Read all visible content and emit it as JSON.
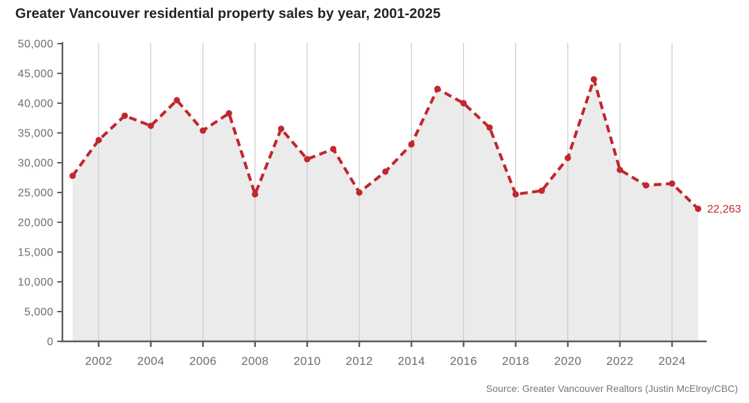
{
  "title": "Greater Vancouver residential property sales by year, 2001-2025",
  "source": "Source: Greater Vancouver Realtors (Justin McElroy/CBC)",
  "annotation": {
    "label": "22,263"
  },
  "colors": {
    "background": "#ffffff",
    "line": "#c1272d",
    "marker": "#c1272d",
    "area": "#ebebeb",
    "grid": "#c9c9c9",
    "axis": "#5b5b5b",
    "tick_text": "#6d6d6d",
    "title_text": "#242424",
    "source_text": "#767676"
  },
  "chart_data": {
    "type": "line",
    "title": "Greater Vancouver residential property sales by year, 2001-2025",
    "xlabel": "",
    "ylabel": "",
    "x": [
      2001,
      2002,
      2003,
      2004,
      2005,
      2006,
      2007,
      2008,
      2009,
      2010,
      2011,
      2012,
      2013,
      2014,
      2015,
      2016,
      2017,
      2018,
      2019,
      2020,
      2021,
      2022,
      2023,
      2024,
      2025
    ],
    "values": [
      27800,
      33800,
      37900,
      36200,
      40500,
      35400,
      38300,
      24700,
      35700,
      30600,
      32300,
      25000,
      28500,
      33100,
      42400,
      40000,
      35900,
      24700,
      25300,
      30800,
      44000,
      28800,
      26200,
      26500,
      22263
    ],
    "xlim": [
      2001,
      2025
    ],
    "ylim": [
      0,
      50000
    ],
    "ytick_step": 5000,
    "ytick_labels": [
      "0",
      "5,000",
      "10,000",
      "15,000",
      "20,000",
      "25,000",
      "30,000",
      "35,000",
      "40,000",
      "45,000",
      "50,000"
    ],
    "xticks": [
      2002,
      2004,
      2006,
      2008,
      2010,
      2012,
      2014,
      2016,
      2018,
      2020,
      2022,
      2024
    ],
    "xtick_labels": [
      "2002",
      "2004",
      "2006",
      "2008",
      "2010",
      "2012",
      "2014",
      "2016",
      "2018",
      "2020",
      "2022",
      "2024"
    ],
    "grid": "vertical",
    "legend": false,
    "line_style": "dashed",
    "markers": true,
    "area_fill": true,
    "last_point_label": "22,263"
  }
}
